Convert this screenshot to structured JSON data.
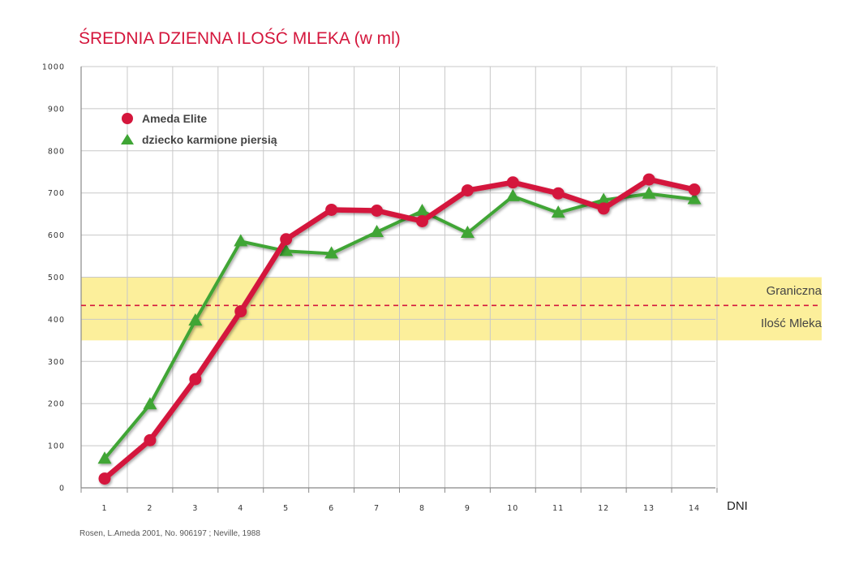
{
  "colors": {
    "ameda": "#d4163c",
    "breastfed": "#3fa535",
    "band": "#fcef9b",
    "threshold": "#d4163c",
    "grid": "#c8c8c8"
  },
  "band_labels": [
    "Graniczna",
    "Ilość Mleka"
  ],
  "source": "Rosen, L.Ameda 2001, No. 906197 ; Neville, 1988",
  "chart_data": {
    "type": "line",
    "title": "ŚREDNIA DZIENNA ILOŚĆ MLEKA (w ml)",
    "xlabel": "DNI",
    "ylabel": "",
    "categories": [
      "1",
      "2",
      "3",
      "4",
      "5",
      "6",
      "7",
      "8",
      "9",
      "10",
      "11",
      "12",
      "13",
      "14"
    ],
    "yticks": [
      "0",
      "100",
      "200",
      "300",
      "400",
      "500",
      "600",
      "700",
      "800",
      "900",
      "1000"
    ],
    "ylim": [
      0,
      1000
    ],
    "grid": true,
    "legend_position": "top-left",
    "series": [
      {
        "name": "Ameda Elite",
        "marker": "circle",
        "values": [
          22,
          113,
          258,
          419,
          590,
          660,
          658,
          633,
          706,
          725,
          699,
          663,
          732,
          708
        ]
      },
      {
        "name": "dziecko karmione piersią",
        "marker": "triangle",
        "values": [
          69,
          198,
          397,
          585,
          562,
          556,
          607,
          657,
          605,
          692,
          653,
          683,
          698,
          685
        ]
      }
    ],
    "threshold_band": [
      350,
      500
    ],
    "threshold_line": 433
  }
}
